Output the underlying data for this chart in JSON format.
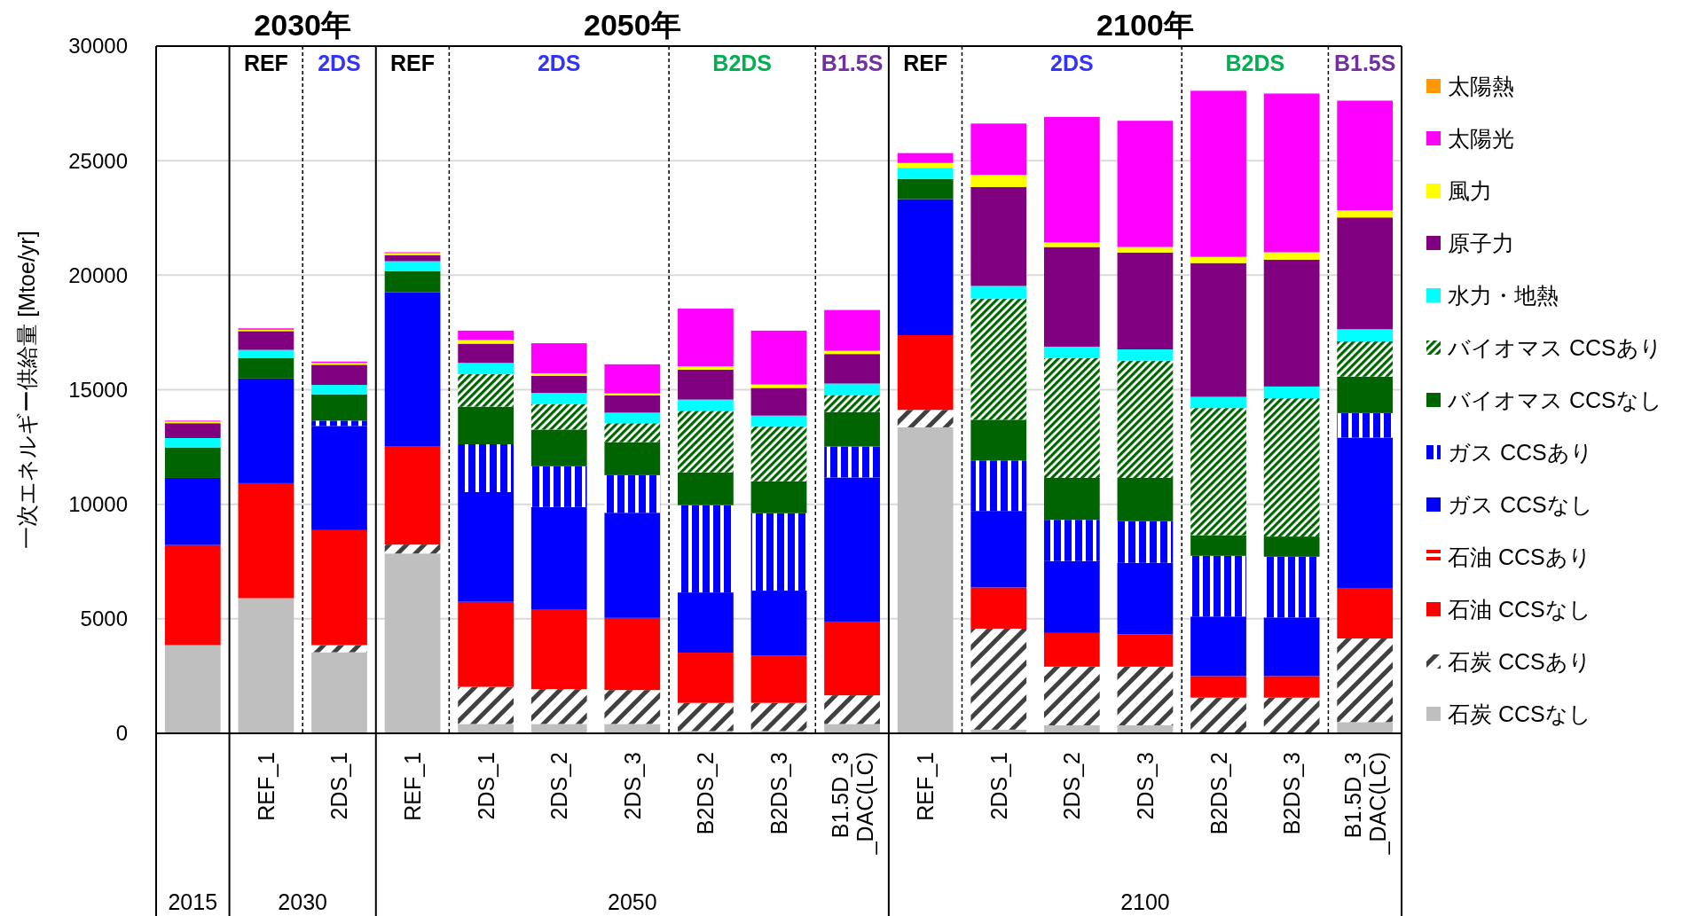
{
  "chart_data": {
    "type": "bar",
    "stacked": true,
    "ylabel": "一次エネルギー供給量 [Mtoe/yr]",
    "categories": [
      null,
      "REF_1",
      "2DS_1",
      "REF_1",
      "2DS_1",
      "2DS_2",
      "2DS_3",
      "B2DS_2",
      "B2DS_3",
      "B1.5D_3_DAC(LC)",
      "REF_1",
      "2DS_1",
      "2DS_2",
      "2DS_3",
      "B2DS_2",
      "B2DS_3",
      "B1.5D_3_DAC(LC)"
    ],
    "ylim": [
      0,
      30000
    ],
    "yticks": [
      0,
      5000,
      10000,
      15000,
      20000,
      25000,
      30000
    ],
    "grid": "y",
    "legend": "right",
    "series": [
      {
        "name": "石炭 CCSなし",
        "color": "#bfbfbf",
        "values": [
          3850,
          5900,
          3540,
          7850,
          410,
          410,
          410,
          100,
          100,
          410,
          13360,
          160,
          350,
          350,
          0,
          0,
          490
        ]
      },
      {
        "name": "石炭 CCSあり",
        "color": "#404040",
        "values": [
          0,
          0,
          310,
          390,
          1620,
          1520,
          1480,
          1230,
          1230,
          1250,
          760,
          4410,
          2560,
          2560,
          1560,
          1560,
          3650
        ]
      },
      {
        "name": "石油 CCSなし",
        "color": "#ff0000",
        "values": [
          4370,
          5020,
          5020,
          4300,
          3710,
          3460,
          3150,
          2190,
          2070,
          3220,
          3260,
          1800,
          1470,
          1410,
          940,
          940,
          2210
        ]
      },
      {
        "name": "石油 CCSあり",
        "color": "#ff0000",
        "values": [
          0,
          0,
          0,
          0,
          0,
          0,
          0,
          0,
          0,
          0,
          0,
          0,
          0,
          0,
          0,
          0,
          0
        ]
      },
      {
        "name": "ガス CCSなし",
        "color": "#0000ff",
        "values": [
          2930,
          4570,
          4550,
          6720,
          4790,
          4490,
          4590,
          2630,
          2830,
          6290,
          5940,
          3340,
          3140,
          3120,
          2600,
          2560,
          6560
        ]
      },
      {
        "name": "ガス CCSあり",
        "color": "#0000ff",
        "values": [
          0,
          0,
          230,
          0,
          2090,
          1780,
          1640,
          3810,
          3380,
          1350,
          0,
          2200,
          1800,
          1820,
          2650,
          2650,
          1070
        ]
      },
      {
        "name": "バイオマス CCSなし",
        "color": "#006400",
        "values": [
          1330,
          900,
          1150,
          920,
          1640,
          1600,
          1440,
          1430,
          1390,
          1500,
          880,
          1780,
          1830,
          1890,
          900,
          880,
          1590
        ]
      },
      {
        "name": "バイオマス CCSあり",
        "color": "#006400",
        "values": [
          0,
          0,
          0,
          0,
          1420,
          1120,
          830,
          2690,
          2400,
          750,
          0,
          5290,
          5240,
          5120,
          5550,
          6040,
          1540
        ]
      },
      {
        "name": "水力・地熱",
        "color": "#00ffff",
        "values": [
          410,
          350,
          410,
          430,
          490,
          480,
          460,
          490,
          470,
          500,
          490,
          550,
          490,
          490,
          490,
          510,
          530
        ]
      },
      {
        "name": "原子力",
        "color": "#800080",
        "values": [
          650,
          820,
          880,
          270,
          840,
          750,
          750,
          1310,
          1210,
          1290,
          0,
          4320,
          4350,
          4230,
          5840,
          5540,
          4880
        ]
      },
      {
        "name": "風力",
        "color": "#ffff00",
        "values": [
          70,
          60,
          80,
          80,
          160,
          110,
          90,
          140,
          150,
          140,
          210,
          530,
          200,
          240,
          270,
          320,
          310
        ]
      },
      {
        "name": "太陽光",
        "color": "#ff00ff",
        "values": [
          40,
          60,
          60,
          40,
          410,
          1310,
          1270,
          2520,
          2350,
          1780,
          430,
          2240,
          5480,
          5510,
          7250,
          6930,
          4790
        ]
      },
      {
        "name": "太陽熱",
        "color": "#ff9900",
        "values": [
          0,
          0,
          0,
          0,
          0,
          0,
          0,
          0,
          0,
          0,
          0,
          0,
          0,
          0,
          0,
          0,
          0
        ]
      }
    ],
    "annotations": [
      "2030年",
      "2050年",
      "2100年",
      "REF",
      "2DS",
      "REF",
      "2DS",
      "B2DS",
      "B1.5S",
      "REF",
      "2DS",
      "B2DS",
      "B1.5S",
      "2015",
      "2030",
      "2050",
      "2100"
    ]
  }
}
